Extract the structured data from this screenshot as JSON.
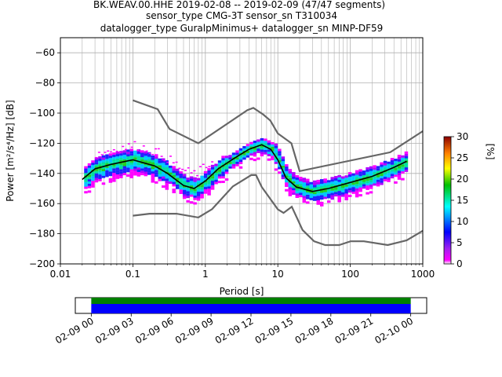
{
  "title_lines": [
    "BK.WEAV.00.HHE   2019-02-08 -- 2019-02-09  (47/47 segments)",
    "sensor_type CMG-3T sensor_sn T310034",
    "datalogger_type GuralpMinimus+ datalogger_sn MINP-DF59"
  ],
  "chart_data": [
    {
      "type": "heatmap",
      "xlabel": "Period [s]",
      "ylabel": "Power [m²/s⁴/Hz] [dB]",
      "x_scale": "log",
      "xlim": [
        0.01,
        1000
      ],
      "ylim": [
        -200,
        -50
      ],
      "grid": true,
      "x_ticks": [
        {
          "value": 0.01,
          "label": "0.01"
        },
        {
          "value": 0.1,
          "label": "0.1"
        },
        {
          "value": 1,
          "label": "1"
        },
        {
          "value": 10,
          "label": "10"
        },
        {
          "value": 100,
          "label": "100"
        },
        {
          "value": 1000,
          "label": "1000"
        }
      ],
      "y_ticks": [
        -60,
        -80,
        -100,
        -120,
        -140,
        -160,
        -180,
        -200
      ],
      "y_tick_labels": [
        "−60",
        "−80",
        "−100",
        "−120",
        "−140",
        "−160",
        "−180",
        "−200"
      ],
      "colorbar": {
        "label": "[%]",
        "range": [
          0,
          30
        ],
        "ticks": [
          "0",
          "5",
          "10",
          "15",
          "20",
          "25",
          "30"
        ],
        "colormap": "pqlx"
      },
      "series": [
        {
          "name": "NHNM",
          "color": "#666666",
          "points": [
            [
              0.1,
              -91.5
            ],
            [
              0.22,
              -97.4
            ],
            [
              0.32,
              -110.5
            ],
            [
              0.8,
              -120
            ],
            [
              3.8,
              -98
            ],
            [
              4.6,
              -96.5
            ],
            [
              6.3,
              -101
            ],
            [
              7.9,
              -105
            ],
            [
              10,
              -113.5
            ],
            [
              15.4,
              -120
            ],
            [
              20,
              -138.5
            ],
            [
              354.8,
              -126
            ],
            [
              1000,
              -112
            ]
          ]
        },
        {
          "name": "NLNM",
          "color": "#666666",
          "points": [
            [
              0.1,
              -168
            ],
            [
              0.17,
              -166.7
            ],
            [
              0.4,
              -166.7
            ],
            [
              0.8,
              -169.2
            ],
            [
              1.24,
              -163.7
            ],
            [
              2.4,
              -148.6
            ],
            [
              4.3,
              -141.1
            ],
            [
              5,
              -141.1
            ],
            [
              6,
              -149
            ],
            [
              10,
              -163.8
            ],
            [
              12,
              -166.2
            ],
            [
              15.6,
              -162.1
            ],
            [
              21.9,
              -177.5
            ],
            [
              31.6,
              -185
            ],
            [
              45,
              -187.5
            ],
            [
              70,
              -187.5
            ],
            [
              101,
              -185
            ],
            [
              154,
              -185
            ],
            [
              328,
              -187.5
            ],
            [
              600,
              -184.4
            ],
            [
              1000,
              -178
            ]
          ]
        },
        {
          "name": "mean",
          "color": "#000000",
          "points": [
            [
              0.02,
              -144
            ],
            [
              0.03,
              -137
            ],
            [
              0.05,
              -134
            ],
            [
              0.1,
              -131
            ],
            [
              0.2,
              -135
            ],
            [
              0.3,
              -140
            ],
            [
              0.5,
              -148
            ],
            [
              0.7,
              -150
            ],
            [
              1.0,
              -145
            ],
            [
              1.5,
              -137
            ],
            [
              2.5,
              -130
            ],
            [
              4,
              -124
            ],
            [
              6,
              -121
            ],
            [
              8,
              -124
            ],
            [
              10,
              -131
            ],
            [
              13,
              -143
            ],
            [
              18,
              -149
            ],
            [
              30,
              -152
            ],
            [
              50,
              -150
            ],
            [
              100,
              -146
            ],
            [
              200,
              -142
            ],
            [
              400,
              -136
            ],
            [
              600,
              -132
            ]
          ]
        }
      ],
      "density": [
        {
          "x": 0.02,
          "y_range": [
            -147,
            -133
          ],
          "peak_pct": 20
        },
        {
          "x": 0.1,
          "y_range": [
            -140,
            -120
          ],
          "peak_pct": 12
        },
        {
          "x": 0.7,
          "y_range": [
            -156,
            -140
          ],
          "peak_pct": 18
        },
        {
          "x": 6,
          "y_range": [
            -130,
            -116
          ],
          "peak_pct": 15
        },
        {
          "x": 30,
          "y_range": [
            -162,
            -140
          ],
          "peak_pct": 18
        },
        {
          "x": 600,
          "y_range": [
            -142,
            -125
          ],
          "peak_pct": 20
        }
      ]
    },
    {
      "type": "timeline",
      "x_tick_labels": [
        "02-09 00",
        "02-09 03",
        "02-09 06",
        "02-09 09",
        "02-09 12",
        "02-09 15",
        "02-09 18",
        "02-09 21",
        "02-10 00"
      ],
      "x_tick_hours": [
        0,
        3,
        6,
        9,
        12,
        15,
        18,
        21,
        24
      ],
      "xlim_hours": [
        -1.2,
        25.2
      ],
      "coverage": [
        {
          "name": "data",
          "start_hour": 0,
          "end_hour": 24,
          "color": "#0000ff"
        },
        {
          "name": "used",
          "start_hour": 0,
          "end_hour": 24,
          "color": "#008000"
        }
      ]
    }
  ]
}
